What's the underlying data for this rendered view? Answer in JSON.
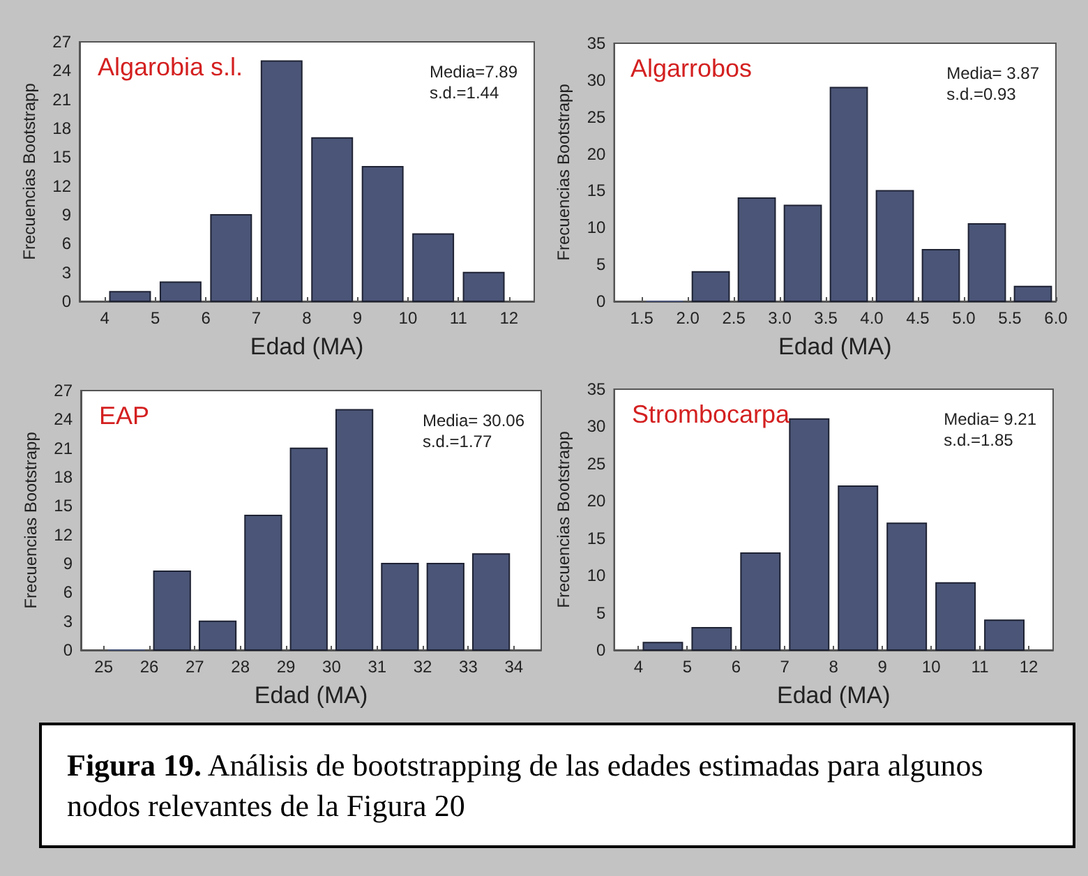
{
  "chart_data": [
    {
      "type": "histogram",
      "title": "Algarobia s.l.",
      "xlabel": "Edad (MA)",
      "ylabel": "Frecuencias Bootstrapp",
      "annotations": [
        "Media=7.89",
        "s.d.=1.44"
      ],
      "color": "#4a5577",
      "bins": [
        4,
        5,
        6,
        7,
        8,
        9,
        10,
        11,
        12
      ],
      "values": [
        1,
        2,
        9,
        25,
        17,
        14,
        7,
        3
      ],
      "xlim": [
        3.5,
        12.5
      ],
      "xticks": [
        4,
        5,
        6,
        7,
        8,
        9,
        10,
        11,
        12
      ],
      "ylim": [
        0,
        27
      ],
      "yticks": [
        0,
        3,
        6,
        9,
        12,
        15,
        18,
        21,
        24,
        27
      ],
      "grid": false
    },
    {
      "type": "histogram",
      "title": "Algarrobos",
      "xlabel": "Edad (MA)",
      "ylabel": "Frecuencias Bootstrapp",
      "annotations": [
        "Media= 3.87",
        "s.d.=0.93"
      ],
      "color": "#4a5577",
      "bins": [
        1.5,
        2.0,
        2.5,
        3.0,
        3.5,
        4.0,
        4.5,
        5.0,
        5.5,
        6.0
      ],
      "values": [
        0,
        4,
        14,
        13,
        29,
        15,
        7,
        10.5,
        2
      ],
      "xlim": [
        1.2,
        6.0
      ],
      "xticks": [
        1.5,
        {
          "value": 2,
          "label": "2.0"
        },
        2.5,
        {
          "value": 3,
          "label": "3.0"
        },
        3.5,
        {
          "value": 4,
          "label": "4.0"
        },
        4.5,
        {
          "value": 5,
          "label": "5.0"
        },
        5.5,
        {
          "value": 6,
          "label": "6.0"
        }
      ],
      "ylim": [
        0,
        35
      ],
      "yticks": [
        0,
        5,
        10,
        15,
        20,
        25,
        30,
        35
      ],
      "grid": false
    },
    {
      "type": "histogram",
      "title": "EAP",
      "xlabel": "Edad (MA)",
      "ylabel": "Frecuencias Bootstrapp",
      "annotations": [
        "Media= 30.06",
        "s.d.=1.77"
      ],
      "color": "#4a5577",
      "bins": [
        25,
        26,
        27,
        28,
        29,
        30,
        31,
        32,
        33,
        34
      ],
      "values": [
        0,
        8.2,
        3,
        14,
        21,
        25,
        9,
        9,
        10
      ],
      "xlim": [
        24.5,
        34.6
      ],
      "xticks": [
        25,
        26,
        27,
        28,
        29,
        30,
        31,
        32,
        33,
        34
      ],
      "ylim": [
        0,
        27
      ],
      "yticks": [
        0,
        3,
        6,
        9,
        12,
        15,
        18,
        21,
        24,
        27
      ],
      "grid": false
    },
    {
      "type": "histogram",
      "title": "Strombocarpa",
      "xlabel": "Edad (MA)",
      "ylabel": "Frecuencias Bootstrapp",
      "annotations": [
        "Media= 9.21",
        "s.d.=1.85"
      ],
      "color": "#4a5577",
      "bins": [
        4,
        5,
        6,
        7,
        8,
        9,
        10,
        11,
        12
      ],
      "values": [
        1,
        3,
        13,
        31,
        22,
        17,
        9,
        4
      ],
      "xlim": [
        3.5,
        12.5
      ],
      "xticks": [
        4,
        5,
        6,
        7,
        8,
        9,
        10,
        11,
        12
      ],
      "ylim": [
        0,
        35
      ],
      "yticks": [
        0,
        5,
        10,
        15,
        20,
        25,
        30,
        35
      ],
      "grid": false
    },
    {
      "type": "other",
      "title": "Figura 19.",
      "annotations": [
        "Análisis de bootstrapping de las edades estimadas para algunos nodos relevantes de la Figura 20"
      ]
    }
  ]
}
